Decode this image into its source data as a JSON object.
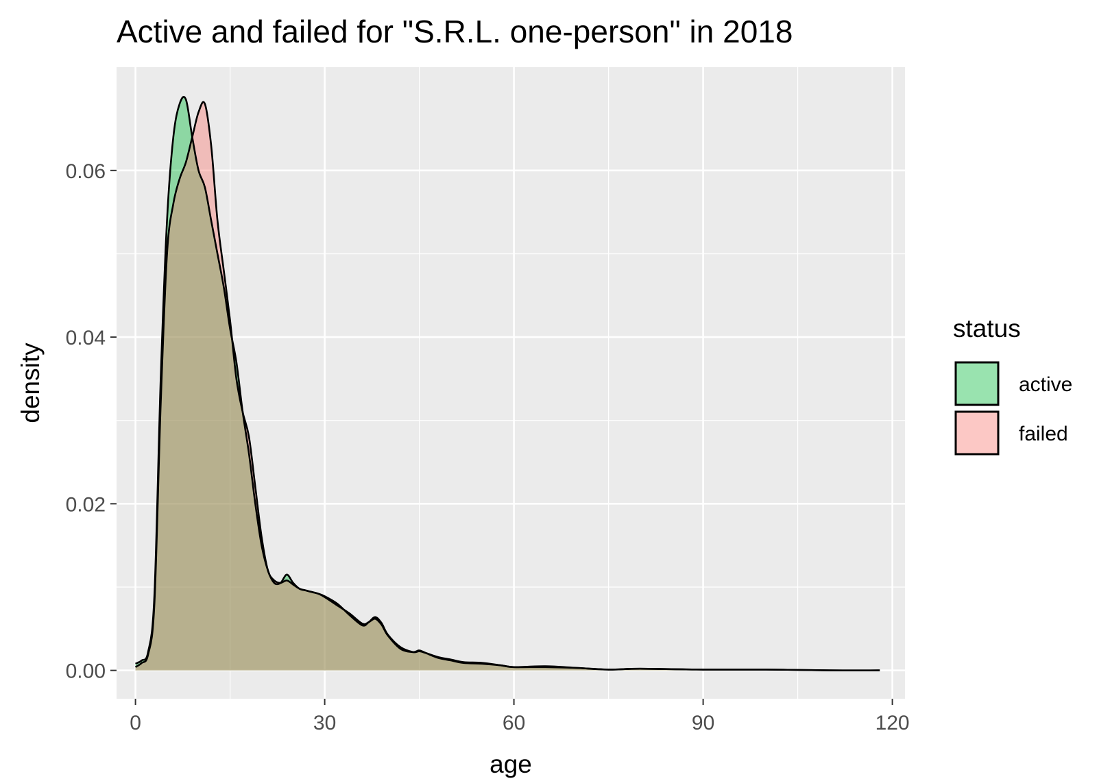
{
  "chart_data": {
    "type": "area",
    "subtype": "density",
    "title": "Active and failed for \"S.R.L. one-person\" in 2018",
    "xlabel": "age",
    "ylabel": "density",
    "xlim": [
      -3,
      122
    ],
    "ylim": [
      -0.0034,
      0.0724
    ],
    "x_ticks": [
      0,
      30,
      60,
      90,
      120
    ],
    "x_tick_labels": [
      "0",
      "30",
      "60",
      "90",
      "120"
    ],
    "y_ticks": [
      0.0,
      0.02,
      0.04,
      0.06
    ],
    "y_tick_labels": [
      "0.00",
      "0.02",
      "0.04",
      "0.06"
    ],
    "grid": true,
    "legend": {
      "title": "status",
      "position": "right"
    },
    "series": [
      {
        "name": "active",
        "color": "#00BA38",
        "fill_opacity": 0.4,
        "x": [
          0,
          1,
          2,
          3,
          4,
          5,
          6,
          7,
          8,
          9,
          10,
          11,
          12,
          13,
          14,
          15,
          16,
          17,
          18,
          19,
          20,
          21,
          22,
          23,
          24,
          25,
          26,
          27,
          28,
          29,
          30,
          32,
          34,
          36,
          37,
          38,
          39,
          40,
          42,
          44,
          45,
          46,
          48,
          50,
          52,
          55,
          58,
          60,
          65,
          70,
          75,
          80,
          90,
          100,
          110,
          118
        ],
        "y": [
          0.0008,
          0.0012,
          0.0022,
          0.009,
          0.035,
          0.054,
          0.064,
          0.068,
          0.0685,
          0.064,
          0.06,
          0.058,
          0.054,
          0.05,
          0.046,
          0.041,
          0.037,
          0.031,
          0.026,
          0.02,
          0.015,
          0.012,
          0.0105,
          0.0105,
          0.0115,
          0.0105,
          0.0098,
          0.0096,
          0.0094,
          0.0092,
          0.0088,
          0.0078,
          0.0068,
          0.0056,
          0.0058,
          0.0062,
          0.0055,
          0.0042,
          0.0026,
          0.0022,
          0.0024,
          0.0021,
          0.0015,
          0.0012,
          0.0009,
          0.0008,
          0.0006,
          0.0004,
          0.0004,
          0.0003,
          0.0001,
          0.0002,
          0.0001,
          0.0001,
          0.0,
          0.0
        ]
      },
      {
        "name": "failed",
        "color": "#F8766D",
        "fill_opacity": 0.4,
        "x": [
          0,
          1,
          2,
          3,
          4,
          5,
          6,
          7,
          8,
          9,
          10,
          11,
          12,
          13,
          14,
          15,
          16,
          17,
          18,
          19,
          20,
          21,
          22,
          23,
          24,
          25,
          26,
          27,
          28,
          29,
          30,
          32,
          34,
          36,
          37,
          38,
          39,
          40,
          42,
          44,
          45,
          46,
          48,
          50,
          52,
          55,
          58,
          60,
          65,
          70,
          75,
          80,
          90,
          100,
          110,
          118
        ],
        "y": [
          0.0004,
          0.0009,
          0.0019,
          0.008,
          0.032,
          0.05,
          0.056,
          0.059,
          0.061,
          0.064,
          0.067,
          0.068,
          0.063,
          0.054,
          0.048,
          0.042,
          0.035,
          0.031,
          0.028,
          0.022,
          0.016,
          0.012,
          0.0108,
          0.0105,
          0.0108,
          0.0103,
          0.0098,
          0.0096,
          0.0094,
          0.0092,
          0.0089,
          0.008,
          0.0066,
          0.0054,
          0.0058,
          0.0064,
          0.0057,
          0.0043,
          0.0028,
          0.0022,
          0.0023,
          0.0021,
          0.0016,
          0.0013,
          0.001,
          0.0009,
          0.0006,
          0.0004,
          0.0005,
          0.0003,
          0.0001,
          0.0002,
          0.0001,
          0.0001,
          0.0,
          0.0
        ]
      }
    ]
  }
}
